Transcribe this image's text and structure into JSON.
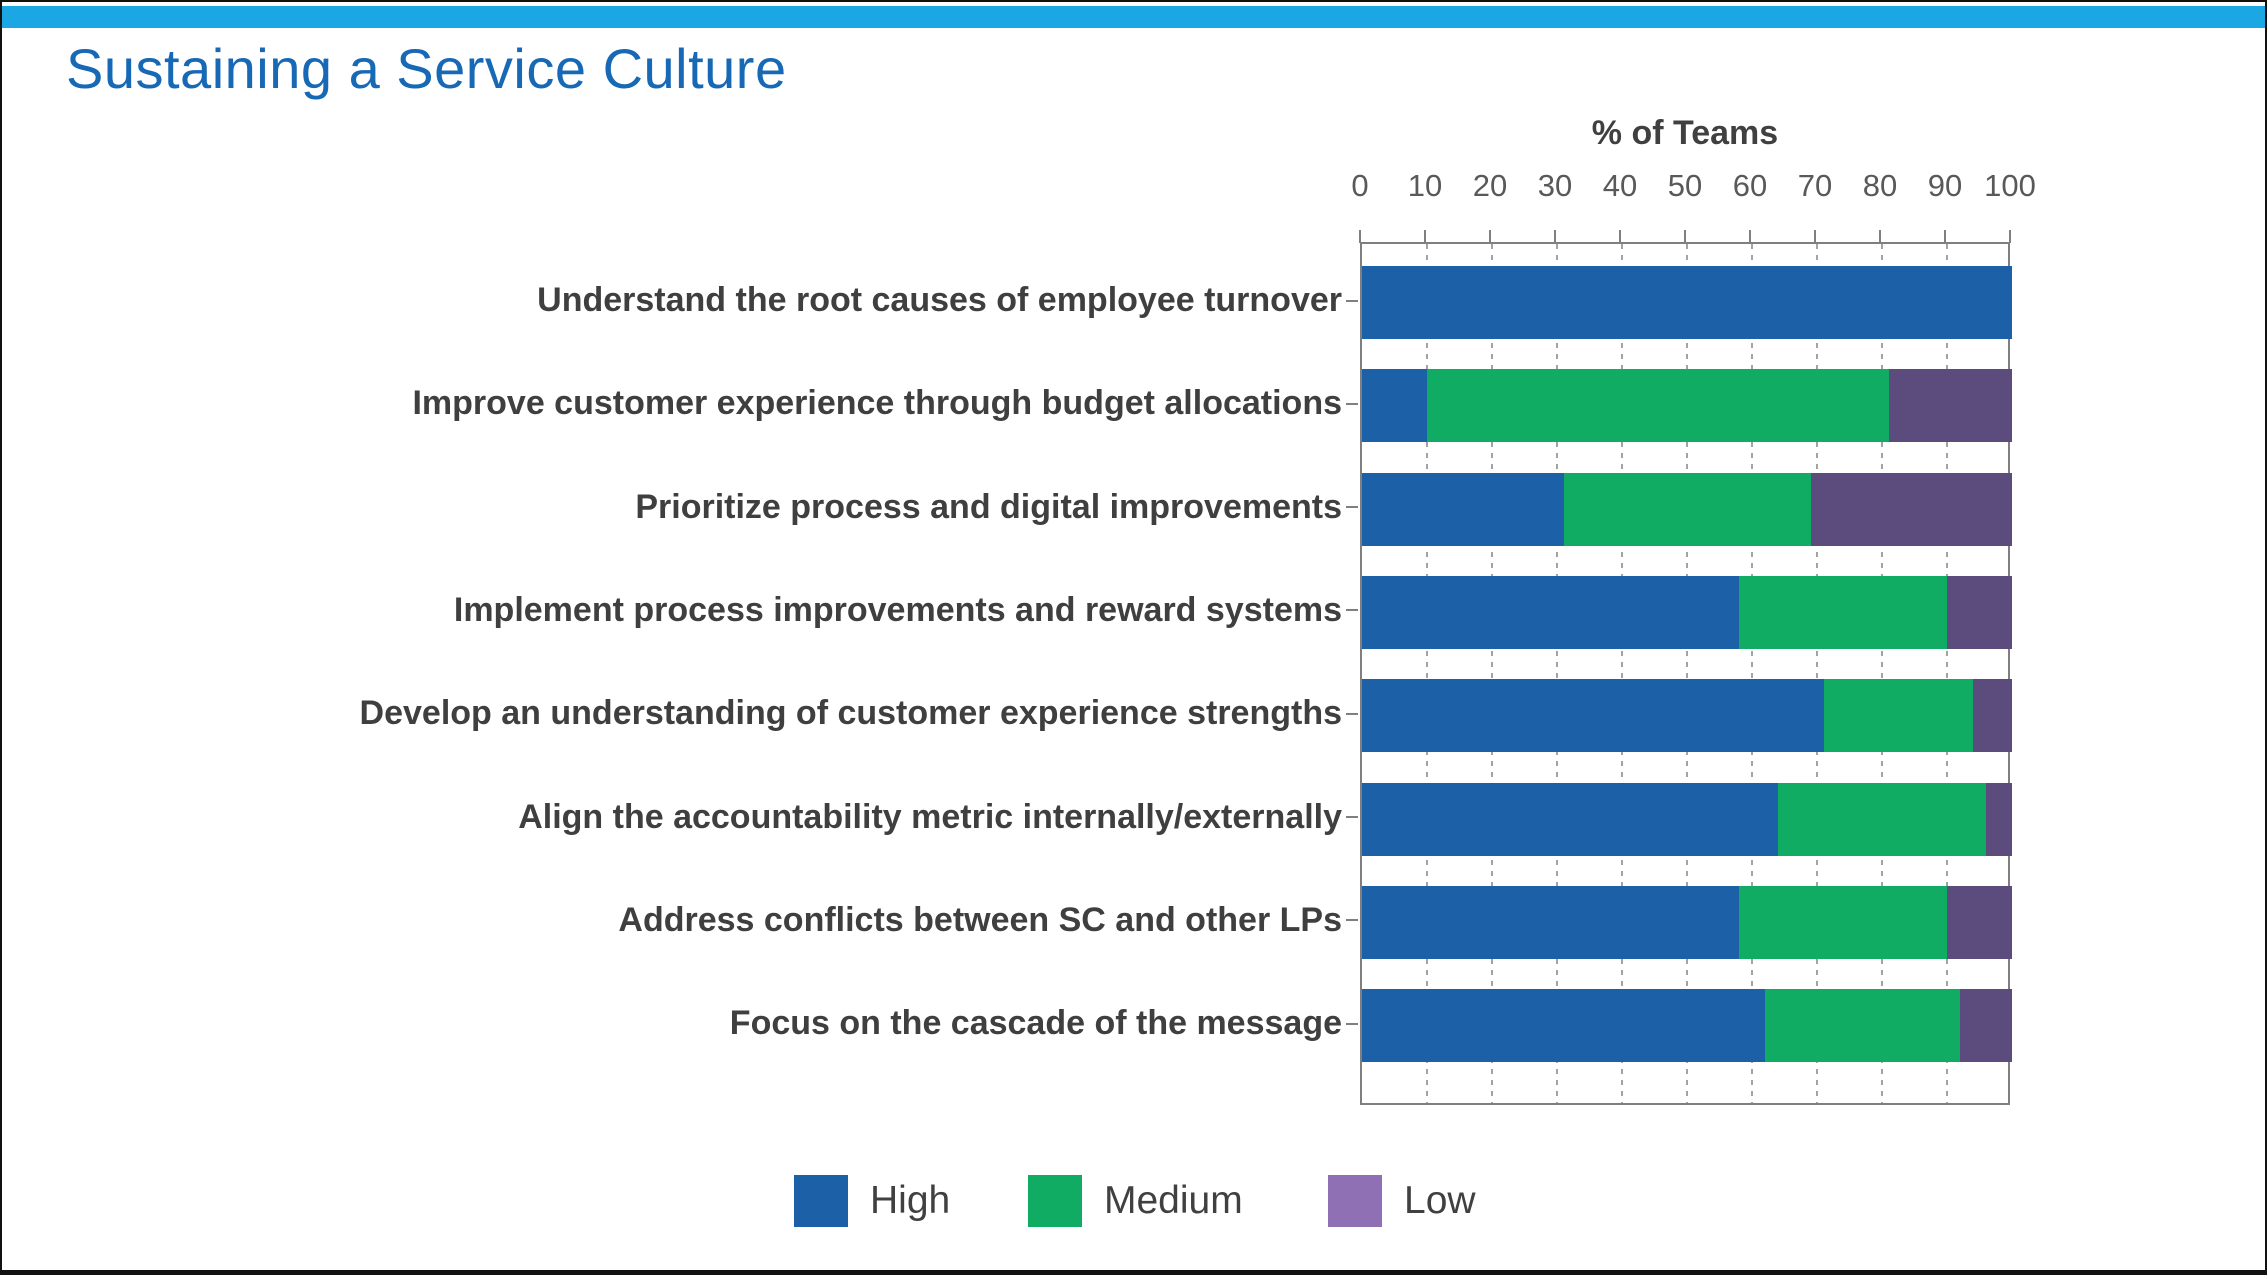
{
  "page": {
    "title": "Sustaining a Service Culture"
  },
  "colors": {
    "accent_bar": "#1BA7E4",
    "title": "#1768B5",
    "axis_text": "#595959",
    "label_text": "#3F3F3F",
    "plot_border": "#7F7F7F",
    "gridline": "#A3A3A3",
    "high": "#1C61A8",
    "medium": "#10AC63",
    "low_bar": "#5C4B7D",
    "low_legend": "#8F70B5"
  },
  "chart_data": {
    "type": "bar",
    "orientation": "horizontal",
    "stacked": true,
    "xlabel": "% of Teams",
    "ylabel": "",
    "xlim": [
      0,
      100
    ],
    "x_ticks": [
      0,
      10,
      20,
      30,
      40,
      50,
      60,
      70,
      80,
      90,
      100
    ],
    "grid": true,
    "legend_position": "bottom",
    "categories": [
      "Understand the root causes of employee turnover",
      "Improve customer experience through budget allocations",
      "Prioritize process and digital improvements",
      "Implement process improvements and reward systems",
      "Develop an understanding of customer experience strengths",
      "Align the accountability metric internally/externally",
      "Address conflicts between SC and other LPs",
      "Focus on the cascade of the message"
    ],
    "series": [
      {
        "name": "High",
        "color": "#1C61A8",
        "values": [
          100,
          10,
          31,
          58,
          71,
          64,
          58,
          62
        ]
      },
      {
        "name": "Medium",
        "color": "#10AC63",
        "values": [
          0,
          71,
          38,
          32,
          23,
          32,
          32,
          30
        ]
      },
      {
        "name": "Low",
        "color": "#5C4B7D",
        "values": [
          0,
          19,
          31,
          10,
          6,
          4,
          10,
          8
        ]
      }
    ],
    "legend": [
      {
        "label": "High",
        "color": "#1C61A8"
      },
      {
        "label": "Medium",
        "color": "#10AC63"
      },
      {
        "label": "Low",
        "color": "#8F70B5"
      }
    ]
  }
}
